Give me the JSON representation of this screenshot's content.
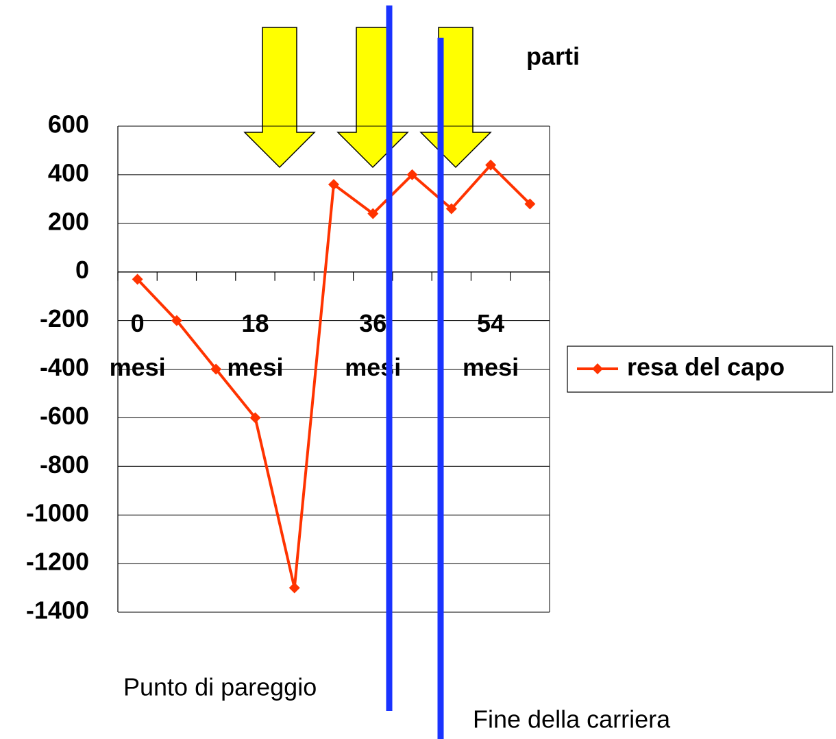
{
  "chart_data": {
    "type": "line",
    "categories": [
      "0\nmesi",
      null,
      null,
      "18\nmesi",
      null,
      null,
      "36\nmesi",
      null,
      null,
      "54\nmesi",
      null
    ],
    "series": [
      {
        "name": "resa del capo",
        "color": "#ff3300",
        "values": [
          -30,
          -200,
          -400,
          -600,
          -1300,
          360,
          240,
          400,
          260,
          440,
          280
        ]
      }
    ],
    "ylim": [
      -1400,
      600
    ],
    "yticks": [
      -1400,
      -1200,
      -1000,
      -800,
      -600,
      -400,
      -200,
      0,
      200,
      400,
      600
    ],
    "grid": true,
    "legend": "right",
    "annotations": [
      "parti",
      "Punto di pareggio",
      "Fine della carriera"
    ]
  }
}
